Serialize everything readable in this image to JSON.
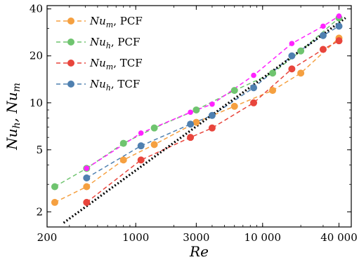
{
  "chart_data": {
    "type": "scatter",
    "xscale": "log",
    "yscale": "log",
    "xlim": [
      200,
      50000
    ],
    "ylim": [
      1.6,
      42
    ],
    "xlabel": "Re",
    "ylabel": "Nu_h, Nu_m",
    "xticks": [
      {
        "value": 200,
        "label": "200"
      },
      {
        "value": 1000,
        "label": "1000"
      },
      {
        "value": 3000,
        "label": "3000"
      },
      {
        "value": 10000,
        "label": "10 000"
      },
      {
        "value": 40000,
        "label": "40 000"
      }
    ],
    "yticks": [
      {
        "value": 2,
        "label": "2"
      },
      {
        "value": 5,
        "label": "5"
      },
      {
        "value": 10,
        "label": "10"
      },
      {
        "value": 20,
        "label": "20"
      },
      {
        "value": 40,
        "label": "40"
      }
    ],
    "legend": {
      "position": "top-left"
    },
    "series": [
      {
        "name": "Nu_m, PCF",
        "legend_base": "Nu",
        "legend_sub": "m",
        "legend_suffix": ", PCF",
        "color": "#F5A040",
        "line": "dashed",
        "marker": "circle",
        "in_legend": true,
        "x": [
          230,
          410,
          800,
          1400,
          3000,
          6000,
          12000,
          20000,
          40000
        ],
        "y": [
          2.3,
          2.9,
          4.3,
          5.4,
          7.5,
          9.5,
          12.0,
          15.5,
          26.0
        ]
      },
      {
        "name": "Nu_h, PCF",
        "legend_base": "Nu",
        "legend_sub": "h",
        "legend_suffix": ", PCF",
        "color": "#6FC46F",
        "line": "dashed",
        "marker": "circle",
        "in_legend": true,
        "x": [
          230,
          410,
          800,
          1400,
          3000,
          6000,
          12000,
          20000,
          40000
        ],
        "y": [
          2.9,
          3.8,
          5.5,
          6.9,
          9.0,
          12.0,
          15.5,
          21.5,
          35.0
        ]
      },
      {
        "name": "Nu_m, TCF",
        "legend_base": "Nu",
        "legend_sub": "m",
        "legend_suffix": ", TCF",
        "color": "#E8453C",
        "line": "dashed",
        "marker": "circle",
        "in_legend": true,
        "x": [
          410,
          1100,
          2700,
          4000,
          8500,
          17000,
          30000,
          40000
        ],
        "y": [
          2.3,
          4.3,
          6.0,
          6.9,
          10.0,
          16.5,
          22.0,
          25.0
        ]
      },
      {
        "name": "Nu_h, TCF",
        "legend_base": "Nu",
        "legend_sub": "h",
        "legend_suffix": ", TCF",
        "color": "#4F80B0",
        "line": "dashed",
        "marker": "circle",
        "in_legend": true,
        "x": [
          410,
          1100,
          2700,
          4000,
          8500,
          17000,
          30000,
          40000
        ],
        "y": [
          3.3,
          5.3,
          7.3,
          8.3,
          12.5,
          20.0,
          27.0,
          31.0
        ]
      },
      {
        "name": "",
        "color": "#FF22FF",
        "line": "dashed",
        "marker": "circle-small",
        "in_legend": false,
        "x": [
          410,
          1100,
          2700,
          4000,
          8500,
          17000,
          30000,
          40000
        ],
        "y": [
          3.8,
          6.4,
          8.7,
          9.8,
          15.0,
          24.0,
          31.0,
          36.0
        ]
      },
      {
        "name": "",
        "color": "#000000",
        "line": "dotted",
        "marker": "none",
        "in_legend": false,
        "x": [
          270,
          45000
        ],
        "y": [
          1.7,
          35.0
        ]
      }
    ]
  }
}
